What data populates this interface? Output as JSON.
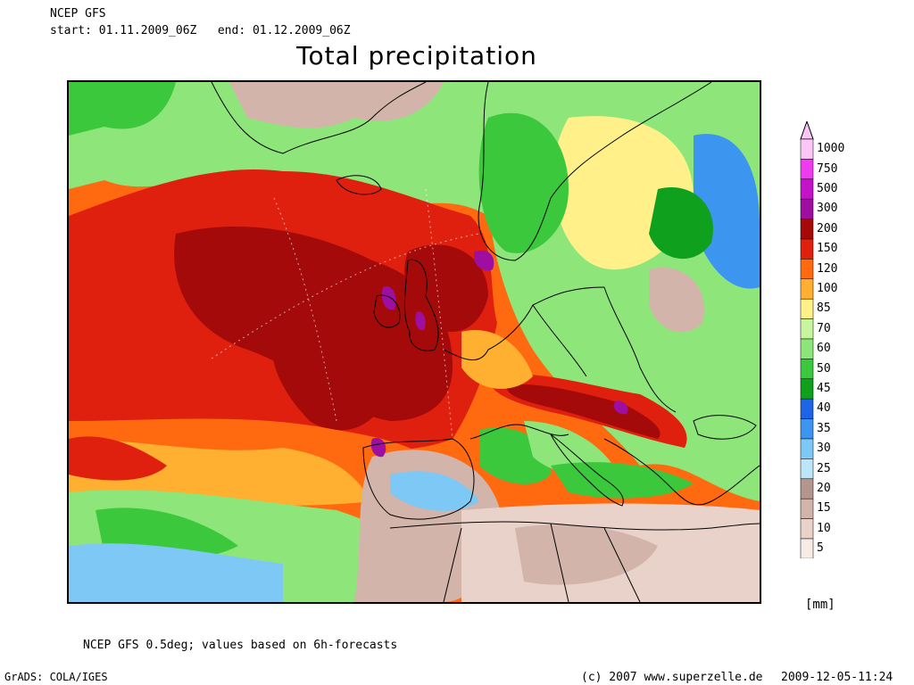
{
  "header": {
    "model": "NCEP GFS",
    "period": "start: 01.11.2009_06Z   end: 01.12.2009_06Z"
  },
  "title": "Total precipitation",
  "legend": {
    "unit": "[mm]",
    "classes": [
      {
        "label": "1000",
        "color": "#f9c6f5"
      },
      {
        "label": "750",
        "color": "#f03cf0"
      },
      {
        "label": "500",
        "color": "#c312c8"
      },
      {
        "label": "300",
        "color": "#9e0ea0"
      },
      {
        "label": "200",
        "color": "#a50a0a"
      },
      {
        "label": "150",
        "color": "#e0200f"
      },
      {
        "label": "120",
        "color": "#ff6a10"
      },
      {
        "label": "100",
        "color": "#ffb030"
      },
      {
        "label": "85",
        "color": "#fff08a"
      },
      {
        "label": "70",
        "color": "#c8f5a0"
      },
      {
        "label": "60",
        "color": "#8ee67a"
      },
      {
        "label": "50",
        "color": "#3cc83c"
      },
      {
        "label": "45",
        "color": "#0fa01e"
      },
      {
        "label": "40",
        "color": "#1e64e6"
      },
      {
        "label": "35",
        "color": "#3c96f0"
      },
      {
        "label": "30",
        "color": "#7ec8f5"
      },
      {
        "label": "25",
        "color": "#bce6f8"
      },
      {
        "label": "20",
        "color": "#b4968c"
      },
      {
        "label": "15",
        "color": "#d2b4aa"
      },
      {
        "label": "10",
        "color": "#e8d2ca"
      },
      {
        "label": "5",
        "color": "#f8ece6"
      }
    ]
  },
  "footer": {
    "note": "NCEP GFS 0.5deg; values based on 6h-forecasts",
    "software": "GrADS: COLA/IGES",
    "copyright": "(c) 2007 www.superzelle.de",
    "timestamp": "2009-12-05-11:24"
  }
}
